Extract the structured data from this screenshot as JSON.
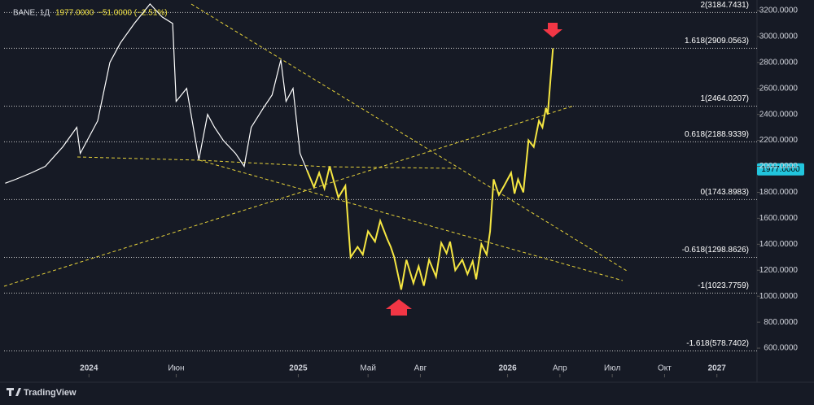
{
  "chart_data": {
    "type": "line",
    "symbol": "BANE, 1Д",
    "last_price": {
      "value": 1977,
      "label": "1977.0000"
    },
    "change": "−51.0000 (−2.51%)",
    "brand": "TradingView",
    "xlim": [
      -5.1,
      38.3
    ],
    "xticks": [
      {
        "value": 0,
        "label": "2024"
      },
      {
        "value": 5,
        "label": "Июн"
      },
      {
        "value": 12,
        "label": "2025"
      },
      {
        "value": 16,
        "label": "Май"
      },
      {
        "value": 19,
        "label": "Авг"
      },
      {
        "value": 24,
        "label": "2026"
      },
      {
        "value": 27,
        "label": "Апр"
      },
      {
        "value": 30,
        "label": "Июл"
      },
      {
        "value": 33,
        "label": "Окт"
      },
      {
        "value": 36,
        "label": "2027"
      }
    ],
    "ylim": [
      400,
      3281
    ],
    "yticks": [
      {
        "value": 600,
        "label": "600.0000"
      },
      {
        "value": 800,
        "label": "800.0000"
      },
      {
        "value": 1000,
        "label": "1000.0000"
      },
      {
        "value": 1200,
        "label": "1200.0000"
      },
      {
        "value": 1400,
        "label": "1400.0000"
      },
      {
        "value": 1600,
        "label": "1600.0000"
      },
      {
        "value": 1800,
        "label": "1800.0000"
      },
      {
        "value": 2000,
        "label": "2000.0000"
      },
      {
        "value": 2200,
        "label": "2200.0000"
      },
      {
        "value": 2400,
        "label": "2400.0000"
      },
      {
        "value": 2600,
        "label": "2600.0000"
      },
      {
        "value": 2800,
        "label": "2800.0000"
      },
      {
        "value": 3000,
        "label": "3000.0000"
      },
      {
        "value": 3200,
        "label": "3200.0000"
      }
    ],
    "levels": [
      {
        "value": 3184.7431,
        "label": "2(3184.7431)"
      },
      {
        "value": 2909.0563,
        "label": "1.618(2909.0563)"
      },
      {
        "value": 2464.0207,
        "label": "1(2464.0207)"
      },
      {
        "value": 2188.9339,
        "label": "0.618(2188.9339)"
      },
      {
        "value": 1743.8983,
        "label": "0(1743.8983)"
      },
      {
        "value": 1298.8626,
        "label": "-0.618(1298.8626)"
      },
      {
        "value": 1023.7759,
        "label": "-1(1023.7759)"
      },
      {
        "value": 578.7402,
        "label": "-1.618(578.7402)"
      }
    ],
    "series": [
      {
        "color": "#ffffff",
        "x": [
          -4.8,
          -4.2,
          -3.3,
          -2.5,
          -1.5,
          -0.7,
          -0.5,
          0.5,
          1.2,
          1.8,
          2.6,
          3.5,
          4.2,
          4.8,
          5.0,
          5.6,
          6.3,
          6.8,
          7.2,
          7.7,
          8.4,
          8.9,
          9.3,
          10.0,
          10.5,
          11.0,
          11.3,
          11.7,
          12.1,
          12.5
        ],
        "values": [
          1870,
          1900,
          1950,
          2000,
          2150,
          2300,
          2100,
          2350,
          2800,
          2950,
          3100,
          3250,
          3150,
          3100,
          2500,
          2600,
          2050,
          2400,
          2300,
          2200,
          2100,
          2000,
          2300,
          2450,
          2550,
          2820,
          2500,
          2600,
          2100,
          1970
        ]
      },
      {
        "color": "#f5e642",
        "x": [
          12.5,
          12.9,
          13.2,
          13.5,
          13.8,
          14.3,
          14.7,
          15.0,
          15.4,
          15.7,
          16.0,
          16.4,
          16.7,
          17.1,
          17.3,
          17.5,
          17.9,
          18.2,
          18.6,
          18.9,
          19.2,
          19.5,
          19.9,
          20.2,
          20.5,
          20.7,
          21.0,
          21.4,
          21.7,
          22.0,
          22.2,
          22.5,
          22.8,
          23.0,
          23.2,
          23.5,
          23.8,
          24.2,
          24.4,
          24.6,
          24.9,
          25.2,
          25.5,
          25.8,
          26.0,
          26.2,
          26.3,
          26.6
        ],
        "values": [
          1970,
          1840,
          1950,
          1830,
          2000,
          1760,
          1850,
          1300,
          1380,
          1320,
          1500,
          1420,
          1580,
          1440,
          1380,
          1300,
          1050,
          1280,
          1100,
          1230,
          1080,
          1280,
          1150,
          1410,
          1330,
          1420,
          1200,
          1280,
          1170,
          1270,
          1130,
          1400,
          1320,
          1500,
          1900,
          1780,
          1850,
          1950,
          1790,
          1900,
          1800,
          2200,
          2150,
          2350,
          2300,
          2450,
          2400,
          2909
        ]
      }
    ]
  }
}
